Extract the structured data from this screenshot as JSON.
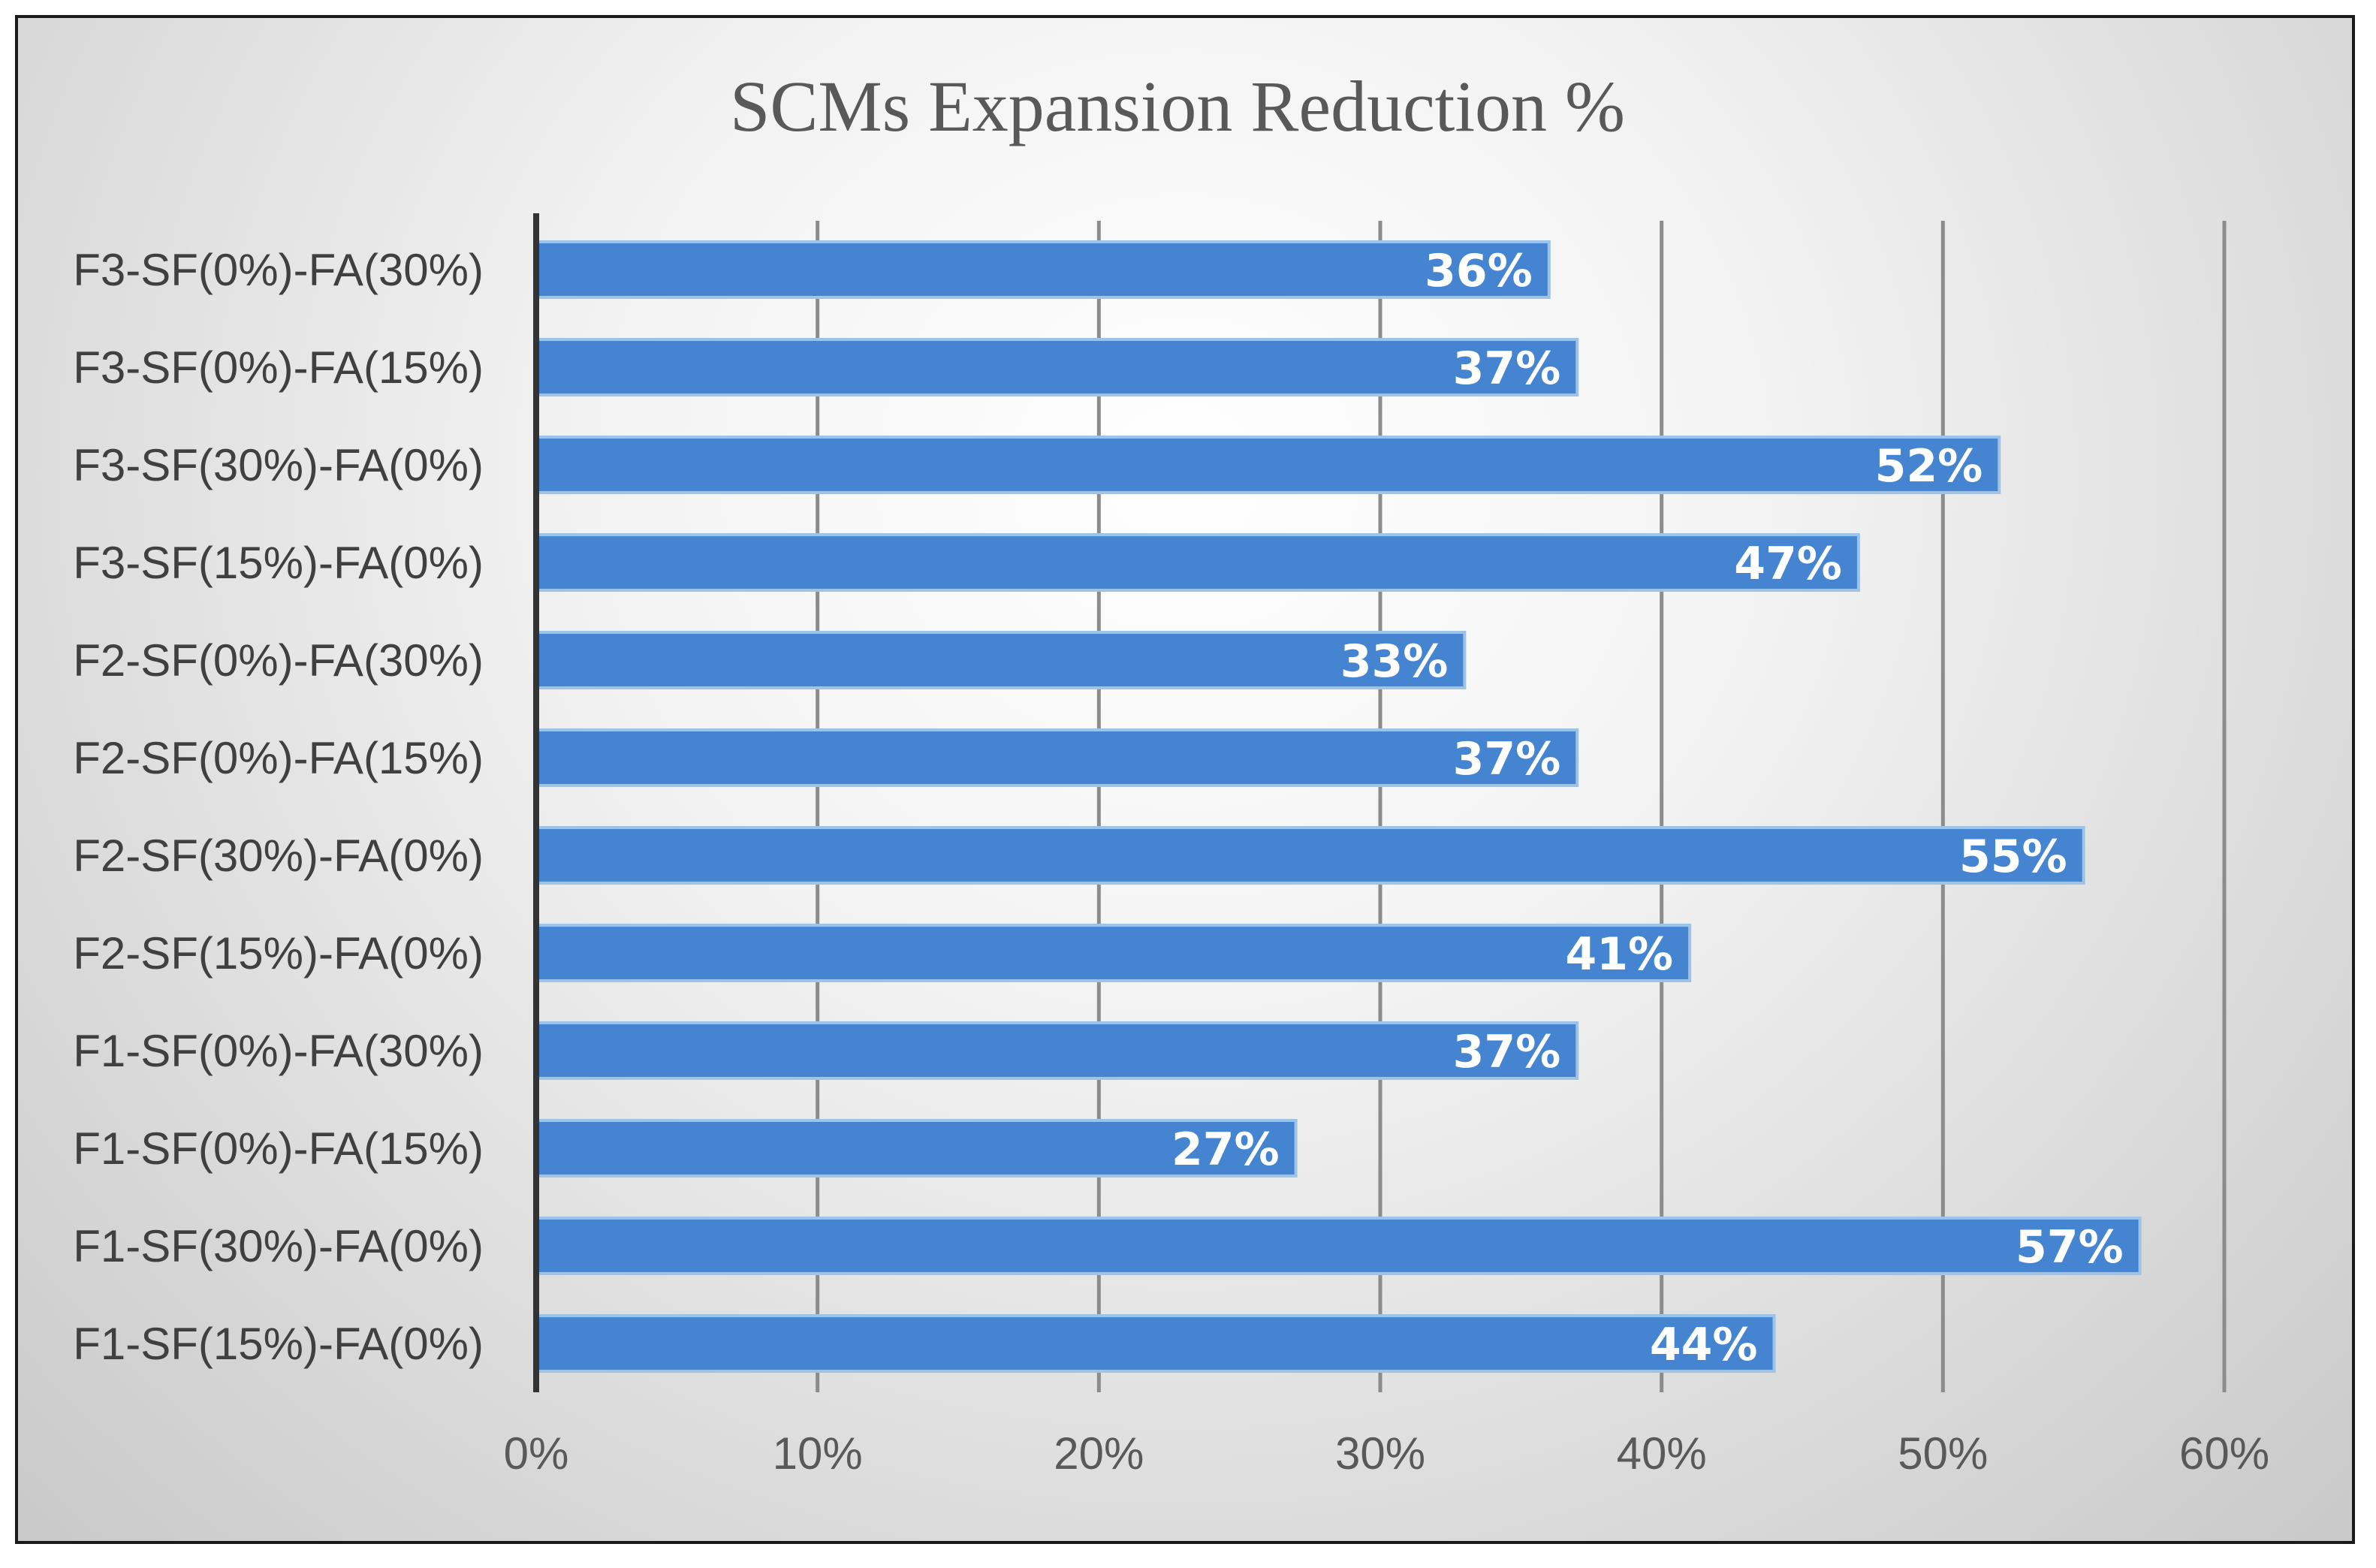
{
  "chart_data": {
    "type": "bar",
    "orientation": "horizontal",
    "title": "SCMs Expansion Reduction %",
    "xlabel": "",
    "ylabel": "",
    "xlim": [
      0,
      60
    ],
    "ticks": [
      "0%",
      "10%",
      "20%",
      "30%",
      "40%",
      "50%",
      "60%"
    ],
    "tick_values": [
      0,
      10,
      20,
      30,
      40,
      50,
      60
    ],
    "grid": true,
    "legend": "none",
    "bar_color": "#4584d1",
    "categories": [
      "F3-SF(0%)-FA(30%)",
      "F3-SF(0%)-FA(15%)",
      "F3-SF(30%)-FA(0%)",
      "F3-SF(15%)-FA(0%)",
      "F2-SF(0%)-FA(30%)",
      "F2-SF(0%)-FA(15%)",
      "F2-SF(30%)-FA(0%)",
      "F2-SF(15%)-FA(0%)",
      "F1-SF(0%)-FA(30%)",
      "F1-SF(0%)-FA(15%)",
      "F1-SF(30%)-FA(0%)",
      "F1-SF(15%)-FA(0%)"
    ],
    "values": [
      36,
      37,
      52,
      47,
      33,
      37,
      55,
      41,
      37,
      27,
      57,
      44
    ],
    "data_labels": [
      "36%",
      "37%",
      "52%",
      "47%",
      "33%",
      "37%",
      "55%",
      "41%",
      "37%",
      "27%",
      "57%",
      "44%"
    ]
  }
}
